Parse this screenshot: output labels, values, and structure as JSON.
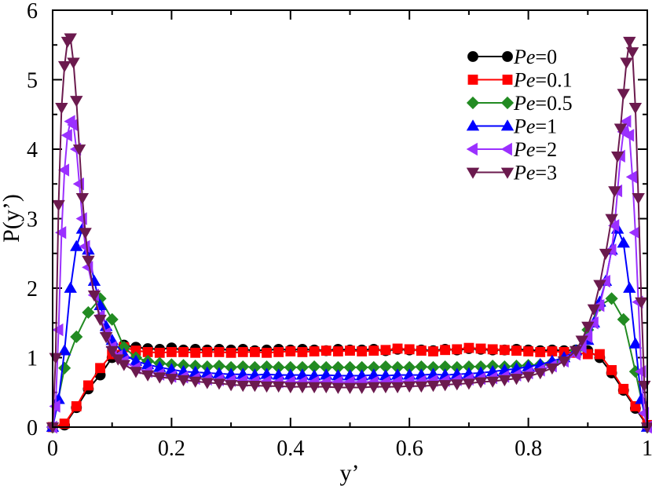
{
  "chart_data": {
    "type": "line",
    "xlabel": "y’",
    "ylabel": "P(y’)",
    "xlim": [
      0,
      1
    ],
    "ylim": [
      0,
      6
    ],
    "x_ticks": [
      0,
      0.2,
      0.4,
      0.6,
      0.8,
      1
    ],
    "x_tick_labels": [
      "0",
      "0.2",
      "0.4",
      "0.6",
      "0.8",
      "1"
    ],
    "y_ticks": [
      0,
      1,
      2,
      3,
      4,
      5,
      6
    ],
    "y_tick_labels": [
      "0",
      "1",
      "2",
      "3",
      "4",
      "5",
      "6"
    ],
    "legend_position": "top-right",
    "series": [
      {
        "name": "Pe=0",
        "prefix": "Pe",
        "suffix": "=0",
        "color": "#000000",
        "marker": "circle",
        "x": [
          0.0,
          0.02,
          0.04,
          0.06,
          0.08,
          0.1,
          0.12,
          0.14,
          0.16,
          0.18,
          0.2,
          0.22,
          0.24,
          0.26,
          0.28,
          0.3,
          0.32,
          0.34,
          0.36,
          0.38,
          0.4,
          0.42,
          0.44,
          0.46,
          0.48,
          0.5,
          0.52,
          0.54,
          0.56,
          0.58,
          0.6,
          0.62,
          0.64,
          0.66,
          0.68,
          0.7,
          0.72,
          0.74,
          0.76,
          0.78,
          0.8,
          0.82,
          0.84,
          0.86,
          0.88,
          0.9,
          0.92,
          0.94,
          0.96,
          0.98,
          1.0
        ],
        "y": [
          0.0,
          0.03,
          0.28,
          0.55,
          0.75,
          1.0,
          1.18,
          1.15,
          1.13,
          1.12,
          1.14,
          1.11,
          1.12,
          1.11,
          1.12,
          1.11,
          1.12,
          1.1,
          1.11,
          1.12,
          1.11,
          1.12,
          1.11,
          1.1,
          1.12,
          1.11,
          1.11,
          1.12,
          1.1,
          1.12,
          1.11,
          1.11,
          1.1,
          1.12,
          1.11,
          1.13,
          1.12,
          1.11,
          1.11,
          1.12,
          1.11,
          1.1,
          1.11,
          1.1,
          1.11,
          1.1,
          1.0,
          0.78,
          0.53,
          0.27,
          0.02
        ]
      },
      {
        "name": "Pe=0.1",
        "prefix": "Pe",
        "suffix": "=0.1",
        "color": "#ff0000",
        "marker": "square",
        "x": [
          0.0,
          0.02,
          0.04,
          0.06,
          0.08,
          0.1,
          0.12,
          0.14,
          0.16,
          0.18,
          0.2,
          0.22,
          0.24,
          0.26,
          0.28,
          0.3,
          0.32,
          0.34,
          0.36,
          0.38,
          0.4,
          0.42,
          0.44,
          0.46,
          0.48,
          0.5,
          0.52,
          0.54,
          0.56,
          0.58,
          0.6,
          0.62,
          0.64,
          0.66,
          0.68,
          0.7,
          0.72,
          0.74,
          0.76,
          0.78,
          0.8,
          0.82,
          0.84,
          0.86,
          0.88,
          0.9,
          0.92,
          0.94,
          0.96,
          0.98,
          1.0
        ],
        "y": [
          0.0,
          0.05,
          0.3,
          0.6,
          0.85,
          1.05,
          1.15,
          1.1,
          1.08,
          1.07,
          1.08,
          1.08,
          1.07,
          1.08,
          1.08,
          1.07,
          1.08,
          1.08,
          1.07,
          1.08,
          1.09,
          1.08,
          1.09,
          1.1,
          1.09,
          1.1,
          1.09,
          1.1,
          1.11,
          1.13,
          1.12,
          1.1,
          1.09,
          1.11,
          1.12,
          1.14,
          1.13,
          1.12,
          1.11,
          1.1,
          1.09,
          1.08,
          1.09,
          1.08,
          1.07,
          1.05,
          1.05,
          0.82,
          0.55,
          0.3,
          0.03
        ]
      },
      {
        "name": "Pe=0.5",
        "prefix": "Pe",
        "suffix": "=0.5",
        "color": "#228b22",
        "marker": "diamond",
        "x": [
          0.0,
          0.02,
          0.04,
          0.06,
          0.08,
          0.1,
          0.12,
          0.14,
          0.16,
          0.18,
          0.2,
          0.22,
          0.24,
          0.26,
          0.28,
          0.3,
          0.32,
          0.34,
          0.36,
          0.38,
          0.4,
          0.42,
          0.44,
          0.46,
          0.48,
          0.5,
          0.52,
          0.54,
          0.56,
          0.58,
          0.6,
          0.62,
          0.64,
          0.66,
          0.68,
          0.7,
          0.72,
          0.74,
          0.76,
          0.78,
          0.8,
          0.82,
          0.84,
          0.86,
          0.88,
          0.9,
          0.92,
          0.94,
          0.96,
          0.98,
          1.0
        ],
        "y": [
          0.0,
          0.85,
          1.3,
          1.65,
          1.85,
          1.55,
          1.15,
          1.0,
          0.95,
          0.92,
          0.9,
          0.89,
          0.88,
          0.87,
          0.88,
          0.86,
          0.87,
          0.86,
          0.87,
          0.86,
          0.86,
          0.86,
          0.87,
          0.86,
          0.86,
          0.86,
          0.86,
          0.86,
          0.87,
          0.86,
          0.86,
          0.87,
          0.86,
          0.87,
          0.86,
          0.87,
          0.87,
          0.88,
          0.87,
          0.88,
          0.89,
          0.9,
          0.93,
          0.98,
          1.1,
          1.4,
          1.75,
          1.85,
          1.55,
          0.8,
          0.0
        ]
      },
      {
        "name": "Pe=1",
        "prefix": "Pe",
        "suffix": "=1",
        "color": "#0000ff",
        "marker": "triangle-up",
        "x": [
          0.0,
          0.01,
          0.02,
          0.03,
          0.04,
          0.05,
          0.06,
          0.07,
          0.08,
          0.09,
          0.1,
          0.12,
          0.14,
          0.16,
          0.18,
          0.2,
          0.22,
          0.24,
          0.26,
          0.28,
          0.3,
          0.32,
          0.34,
          0.36,
          0.38,
          0.4,
          0.42,
          0.44,
          0.46,
          0.48,
          0.5,
          0.52,
          0.54,
          0.56,
          0.58,
          0.6,
          0.62,
          0.64,
          0.66,
          0.68,
          0.7,
          0.72,
          0.74,
          0.76,
          0.78,
          0.8,
          0.82,
          0.84,
          0.86,
          0.88,
          0.9,
          0.91,
          0.92,
          0.93,
          0.94,
          0.95,
          0.96,
          0.97,
          0.98,
          0.99,
          1.0
        ],
        "y": [
          0.0,
          0.4,
          1.1,
          2.0,
          2.6,
          2.85,
          2.55,
          2.1,
          1.75,
          1.45,
          1.25,
          1.05,
          0.95,
          0.9,
          0.86,
          0.83,
          0.8,
          0.79,
          0.78,
          0.77,
          0.76,
          0.76,
          0.75,
          0.76,
          0.75,
          0.75,
          0.75,
          0.74,
          0.75,
          0.74,
          0.74,
          0.74,
          0.75,
          0.74,
          0.75,
          0.75,
          0.75,
          0.76,
          0.75,
          0.76,
          0.77,
          0.78,
          0.8,
          0.82,
          0.84,
          0.87,
          0.9,
          0.95,
          1.0,
          1.1,
          1.25,
          1.5,
          1.8,
          2.1,
          2.55,
          2.85,
          2.65,
          2.0,
          1.2,
          0.4,
          0.0
        ]
      },
      {
        "name": "Pe=2",
        "prefix": "Pe",
        "suffix": "=2",
        "color": "#9b30ff",
        "marker": "triangle-left",
        "x": [
          0.0,
          0.005,
          0.01,
          0.015,
          0.02,
          0.025,
          0.03,
          0.035,
          0.04,
          0.045,
          0.05,
          0.055,
          0.06,
          0.07,
          0.08,
          0.09,
          0.1,
          0.11,
          0.12,
          0.14,
          0.16,
          0.18,
          0.2,
          0.22,
          0.24,
          0.26,
          0.28,
          0.3,
          0.32,
          0.34,
          0.36,
          0.38,
          0.4,
          0.42,
          0.44,
          0.46,
          0.48,
          0.5,
          0.52,
          0.54,
          0.56,
          0.58,
          0.6,
          0.62,
          0.64,
          0.66,
          0.68,
          0.7,
          0.72,
          0.74,
          0.76,
          0.78,
          0.8,
          0.82,
          0.84,
          0.86,
          0.88,
          0.89,
          0.9,
          0.91,
          0.92,
          0.93,
          0.94,
          0.945,
          0.95,
          0.955,
          0.96,
          0.965,
          0.97,
          0.975,
          0.98,
          0.985,
          0.99,
          0.995,
          1.0
        ],
        "y": [
          0.0,
          0.3,
          1.4,
          2.8,
          3.7,
          4.2,
          4.4,
          4.35,
          4.0,
          3.5,
          3.0,
          2.6,
          2.3,
          1.9,
          1.6,
          1.35,
          1.15,
          1.02,
          0.95,
          0.85,
          0.8,
          0.76,
          0.73,
          0.72,
          0.7,
          0.69,
          0.68,
          0.67,
          0.67,
          0.66,
          0.66,
          0.65,
          0.65,
          0.65,
          0.65,
          0.65,
          0.65,
          0.65,
          0.65,
          0.65,
          0.65,
          0.66,
          0.66,
          0.66,
          0.67,
          0.67,
          0.68,
          0.69,
          0.7,
          0.71,
          0.73,
          0.75,
          0.78,
          0.82,
          0.88,
          0.95,
          1.05,
          1.15,
          1.3,
          1.5,
          1.75,
          2.1,
          2.55,
          2.9,
          3.4,
          3.9,
          4.25,
          4.4,
          4.2,
          3.6,
          2.8,
          1.8,
          0.8,
          0.2,
          0.0
        ]
      },
      {
        "name": "Pe=3",
        "prefix": "Pe",
        "suffix": "=3",
        "color": "#6b1a4e",
        "marker": "triangle-down",
        "x": [
          0.0,
          0.005,
          0.01,
          0.015,
          0.02,
          0.025,
          0.03,
          0.035,
          0.04,
          0.045,
          0.05,
          0.055,
          0.06,
          0.07,
          0.08,
          0.09,
          0.1,
          0.11,
          0.12,
          0.14,
          0.16,
          0.18,
          0.2,
          0.22,
          0.24,
          0.26,
          0.28,
          0.3,
          0.32,
          0.34,
          0.36,
          0.38,
          0.4,
          0.42,
          0.44,
          0.46,
          0.48,
          0.5,
          0.52,
          0.54,
          0.56,
          0.58,
          0.6,
          0.62,
          0.64,
          0.66,
          0.68,
          0.7,
          0.72,
          0.74,
          0.76,
          0.78,
          0.8,
          0.82,
          0.84,
          0.86,
          0.88,
          0.89,
          0.9,
          0.91,
          0.92,
          0.93,
          0.94,
          0.945,
          0.95,
          0.955,
          0.96,
          0.965,
          0.97,
          0.975,
          0.98,
          0.985,
          0.99,
          0.995,
          1.0
        ],
        "y": [
          0.0,
          1.0,
          3.2,
          4.6,
          5.2,
          5.55,
          5.6,
          5.25,
          4.7,
          4.0,
          3.3,
          2.8,
          2.4,
          1.9,
          1.55,
          1.3,
          1.1,
          0.98,
          0.9,
          0.8,
          0.75,
          0.72,
          0.7,
          0.68,
          0.66,
          0.64,
          0.63,
          0.61,
          0.6,
          0.6,
          0.59,
          0.59,
          0.58,
          0.58,
          0.58,
          0.58,
          0.57,
          0.57,
          0.57,
          0.58,
          0.58,
          0.58,
          0.59,
          0.59,
          0.6,
          0.61,
          0.62,
          0.63,
          0.65,
          0.66,
          0.68,
          0.7,
          0.73,
          0.78,
          0.85,
          0.95,
          1.1,
          1.25,
          1.45,
          1.7,
          2.05,
          2.5,
          3.0,
          3.4,
          3.9,
          4.3,
          4.8,
          5.25,
          5.55,
          5.4,
          4.6,
          3.3,
          1.8,
          0.6,
          0.0
        ]
      }
    ]
  }
}
